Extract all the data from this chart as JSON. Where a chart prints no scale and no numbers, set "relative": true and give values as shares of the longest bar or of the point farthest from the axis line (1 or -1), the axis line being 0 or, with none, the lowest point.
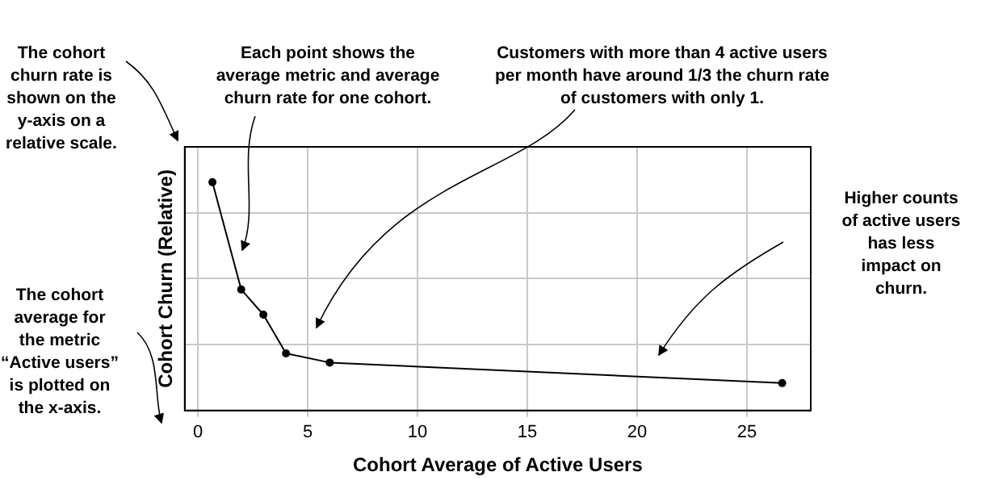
{
  "chart_data": {
    "type": "line",
    "xlabel": "Cohort Average of Active Users",
    "ylabel": "Cohort Churn (Relative)",
    "x": [
      0.66,
      1.97,
      2.98,
      4.01,
      6.0,
      26.6
    ],
    "values": [
      1,
      0.53,
      0.42,
      0.25,
      0.21,
      0.12
    ],
    "color": "#000000",
    "relative": true,
    "marker": "circle",
    "line_style": "solid",
    "grid": true,
    "legend": false,
    "xlim": [
      -0.6,
      27.9
    ],
    "xticks": [
      0,
      5,
      10,
      15,
      20,
      25
    ],
    "tick_labels": "x",
    "annotations": [
      "The cohort churn rate is shown on the y-axis on a relative scale.",
      "Each point shows the average metric and average churn rate for one cohort.",
      "Customers with more than 4 active users per month have around 1/3 the churn rate of customers with only 1.",
      "Higher counts of active users has less impact on churn.",
      "The cohort average for the metric “Active users” is plotted on the x-axis."
    ]
  }
}
